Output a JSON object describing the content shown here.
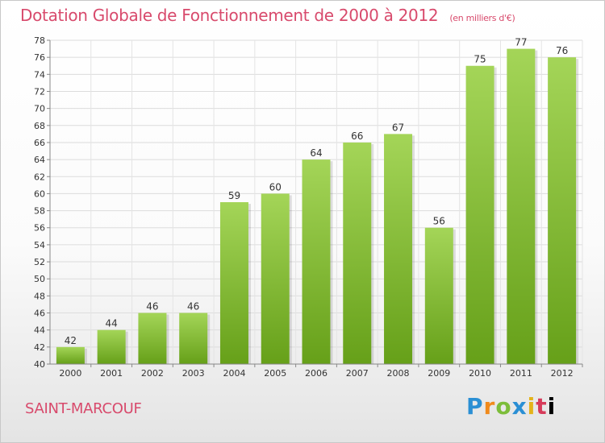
{
  "header": {
    "title": "Dotation Globale de Fonctionnement de 2000 à 2012",
    "unit": "(en milliers d'€)"
  },
  "footer": {
    "commune": "SAINT-MARCOUF",
    "logo": [
      "P",
      "r",
      "o",
      "x",
      "i",
      "t",
      "i"
    ]
  },
  "colors": {
    "bar_light": "#a4d558",
    "bar_dark": "#66a019",
    "title": "#d84a6c"
  },
  "chart_data": {
    "type": "bar",
    "title": "Dotation Globale de Fonctionnement de 2000 à 2012",
    "subtitle": "(en milliers d'€)",
    "categories": [
      "2000",
      "2001",
      "2002",
      "2003",
      "2004",
      "2005",
      "2006",
      "2007",
      "2008",
      "2009",
      "2010",
      "2011",
      "2012"
    ],
    "values": [
      42,
      44,
      46,
      46,
      59,
      60,
      64,
      66,
      67,
      56,
      75,
      77,
      76
    ],
    "ylim": [
      40,
      78
    ],
    "yticks": [
      40,
      42,
      44,
      46,
      48,
      50,
      52,
      54,
      56,
      58,
      60,
      62,
      64,
      66,
      68,
      70,
      72,
      74,
      76,
      78
    ],
    "grid": true,
    "data_labels": true
  }
}
